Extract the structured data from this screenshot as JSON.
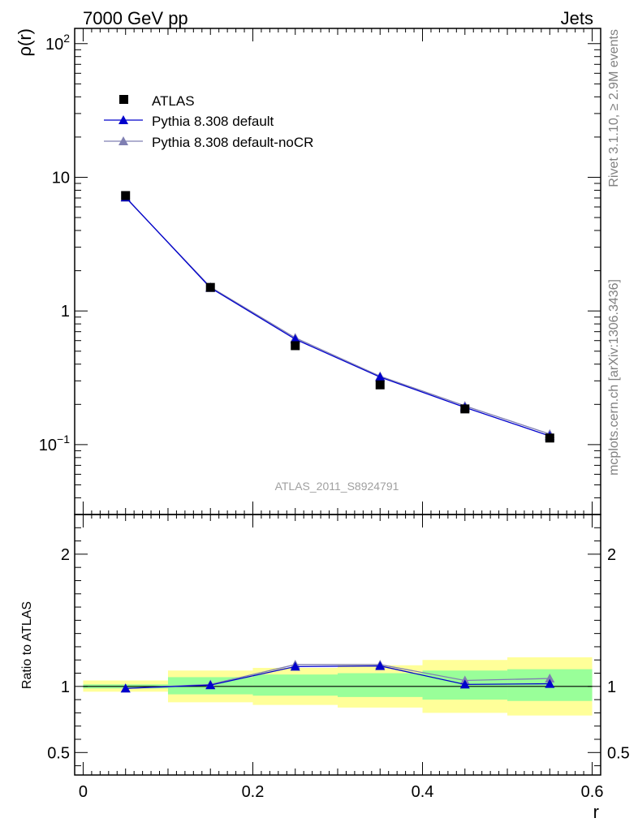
{
  "header": {
    "left": "7000 GeV pp",
    "right": "Jets"
  },
  "side_labels": {
    "rivet": "Rivet 3.1.10, ≥ 2.9M events",
    "source": "mcplots.cern.ch [arXiv:1306.3436]"
  },
  "analysis_label": "ATLAS_2011_S8924791",
  "colors": {
    "atlas": "#000000",
    "default": "#0000cc",
    "noCR": "#7f7fb2",
    "band_inner": "#99ff99",
    "band_outer": "#ffff99"
  },
  "chart_data": [
    {
      "type": "line",
      "panel": "main",
      "xlabel": "",
      "ylabel": "ρ(r)",
      "y_scale": "log",
      "ylim": [
        0.03,
        130
      ],
      "xlim": [
        -0.01,
        0.61
      ],
      "y_ticks": [
        {
          "value": 100,
          "label": "10",
          "sup": "2"
        },
        {
          "value": 10,
          "label": "10",
          "sup": ""
        },
        {
          "value": 1,
          "label": "1",
          "sup": ""
        },
        {
          "value": 0.1,
          "label": "10",
          "sup": "−1"
        }
      ],
      "legend_position": "top-left",
      "x": [
        0.05,
        0.15,
        0.25,
        0.35,
        0.45,
        0.55
      ],
      "series": [
        {
          "name": "ATLAS",
          "marker": "square",
          "values": [
            7.3,
            1.5,
            0.55,
            0.28,
            0.185,
            0.112
          ]
        },
        {
          "name": "Pythia 8.308 default",
          "marker": "triangle",
          "values": [
            7.1,
            1.49,
            0.615,
            0.32,
            0.19,
            0.116
          ]
        },
        {
          "name": "Pythia 8.308 default-noCR",
          "marker": "triangle",
          "values": [
            7.05,
            1.51,
            0.63,
            0.325,
            0.195,
            0.12
          ]
        }
      ]
    },
    {
      "type": "line",
      "panel": "ratio",
      "xlabel": "r",
      "ylabel": "Ratio to ATLAS",
      "ylim": [
        0.33,
        2.3
      ],
      "xlim": [
        -0.01,
        0.61
      ],
      "x_ticks": [
        {
          "value": 0,
          "label": "0"
        },
        {
          "value": 0.2,
          "label": "0.2"
        },
        {
          "value": 0.4,
          "label": "0.4"
        },
        {
          "value": 0.6,
          "label": "0.6"
        }
      ],
      "y_ticks": [
        {
          "value": 2,
          "label": "2"
        },
        {
          "value": 1,
          "label": "1"
        },
        {
          "value": 0.5,
          "label": "0.5"
        }
      ],
      "bands": [
        {
          "x0": 0.0,
          "x1": 0.1,
          "inner": [
            0.985,
            1.015
          ],
          "outer": [
            0.96,
            1.045
          ]
        },
        {
          "x0": 0.1,
          "x1": 0.2,
          "inner": [
            0.94,
            1.07
          ],
          "outer": [
            0.88,
            1.12
          ]
        },
        {
          "x0": 0.2,
          "x1": 0.3,
          "inner": [
            0.93,
            1.09
          ],
          "outer": [
            0.86,
            1.14
          ]
        },
        {
          "x0": 0.3,
          "x1": 0.4,
          "inner": [
            0.92,
            1.1
          ],
          "outer": [
            0.84,
            1.16
          ]
        },
        {
          "x0": 0.4,
          "x1": 0.5,
          "inner": [
            0.9,
            1.12
          ],
          "outer": [
            0.8,
            1.2
          ]
        },
        {
          "x0": 0.5,
          "x1": 0.6,
          "inner": [
            0.89,
            1.13
          ],
          "outer": [
            0.78,
            1.22
          ]
        }
      ],
      "x": [
        0.05,
        0.15,
        0.25,
        0.35,
        0.45,
        0.55
      ],
      "series": [
        {
          "name": "Pythia 8.308 default",
          "values": [
            0.985,
            1.01,
            1.15,
            1.155,
            1.015,
            1.02
          ]
        },
        {
          "name": "Pythia 8.308 default-noCR",
          "values": [
            0.985,
            1.015,
            1.165,
            1.165,
            1.045,
            1.06
          ]
        }
      ]
    }
  ]
}
